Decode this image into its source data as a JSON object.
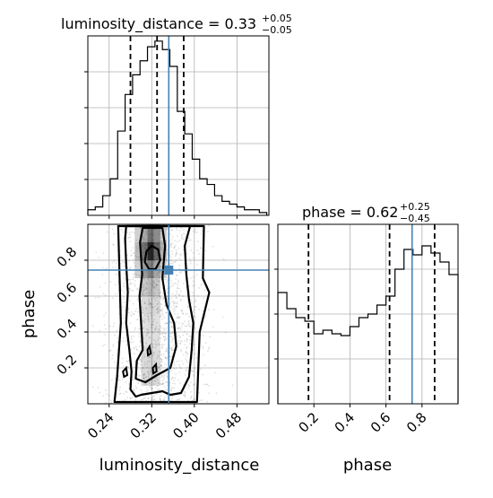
{
  "chart_data": {
    "type": "corner",
    "parameters": [
      "luminosity_distance",
      "phase"
    ],
    "truth": {
      "luminosity_distance": 0.352,
      "phase": 0.745
    },
    "titles": [
      {
        "parameter": "luminosity_distance",
        "prefix": "luminosity_distance = 0.33",
        "plus": "+0.05",
        "minus": "−0.05"
      },
      {
        "parameter": "phase",
        "prefix": "phase = 0.62",
        "plus": "+0.25",
        "minus": "−0.45"
      }
    ],
    "xlabels": [
      "luminosity_distance",
      "phase"
    ],
    "ylabel": "phase",
    "hist_luminosity_distance": {
      "bins": [
        0.2,
        0.214,
        0.228,
        0.242,
        0.256,
        0.27,
        0.284,
        0.298,
        0.312,
        0.326,
        0.34,
        0.354,
        0.368,
        0.382,
        0.396,
        0.41,
        0.424,
        0.438,
        0.452,
        0.466,
        0.48,
        0.494,
        0.508,
        0.522,
        0.536
      ],
      "counts": [
        2,
        3,
        7,
        13,
        30,
        43,
        50,
        55,
        60,
        62,
        59,
        53,
        37,
        29,
        20,
        13,
        11,
        7,
        5,
        4,
        3,
        2,
        2,
        1
      ],
      "quantiles": [
        0.28,
        0.33,
        0.38
      ],
      "xlim": [
        0.2,
        0.54
      ],
      "xticks": [
        "0.24",
        "0.32",
        "0.40",
        "0.48"
      ]
    },
    "hist_phase": {
      "bins": [
        0.0,
        0.05,
        0.1,
        0.15,
        0.2,
        0.25,
        0.3,
        0.35,
        0.4,
        0.45,
        0.5,
        0.55,
        0.6,
        0.65,
        0.7,
        0.75,
        0.8,
        0.85,
        0.9,
        0.95,
        1.0
      ],
      "counts": [
        62,
        53,
        48,
        46,
        39,
        41,
        39,
        38,
        43,
        48,
        50,
        55,
        60,
        75,
        86,
        83,
        88,
        84,
        79,
        72
      ],
      "quantiles": [
        0.17,
        0.62,
        0.87
      ],
      "xlim": [
        0.0,
        1.0
      ],
      "ylim": [
        0,
        100
      ],
      "xticks": [
        "0.2",
        "0.4",
        "0.6",
        "0.8"
      ]
    },
    "scatter": {
      "xlim": [
        0.2,
        0.54
      ],
      "ylim": [
        0.0,
        1.0
      ],
      "yticks": [
        "0.2",
        "0.4",
        "0.6",
        "0.8"
      ],
      "contours": [
        [
          [
            0.307,
            0.79
          ],
          [
            0.31,
            0.85
          ],
          [
            0.32,
            0.88
          ],
          [
            0.332,
            0.86
          ],
          [
            0.336,
            0.8
          ],
          [
            0.327,
            0.75
          ],
          [
            0.315,
            0.75
          ]
        ],
        [
          [
            0.302,
            0.72
          ],
          [
            0.298,
            0.9
          ],
          [
            0.303,
            0.98
          ],
          [
            0.34,
            0.98
          ],
          [
            0.345,
            0.88
          ],
          [
            0.34,
            0.7
          ],
          [
            0.348,
            0.55
          ],
          [
            0.362,
            0.45
          ],
          [
            0.366,
            0.32
          ],
          [
            0.355,
            0.2
          ],
          [
            0.33,
            0.16
          ],
          [
            0.308,
            0.12
          ],
          [
            0.29,
            0.14
          ],
          [
            0.292,
            0.24
          ],
          [
            0.303,
            0.3
          ],
          [
            0.3,
            0.45
          ],
          [
            0.297,
            0.6
          ]
        ],
        [
          [
            0.278,
            0.3
          ],
          [
            0.272,
            0.45
          ],
          [
            0.275,
            0.62
          ],
          [
            0.272,
            0.78
          ],
          [
            0.27,
            0.92
          ],
          [
            0.272,
            0.99
          ],
          [
            0.392,
            0.99
          ],
          [
            0.382,
            0.88
          ],
          [
            0.385,
            0.72
          ],
          [
            0.39,
            0.58
          ],
          [
            0.398,
            0.45
          ],
          [
            0.395,
            0.3
          ],
          [
            0.39,
            0.15
          ],
          [
            0.375,
            0.06
          ],
          [
            0.355,
            0.05
          ],
          [
            0.34,
            0.07
          ],
          [
            0.3,
            0.05
          ],
          [
            0.29,
            0.04
          ],
          [
            0.28,
            0.08
          ],
          [
            0.282,
            0.18
          ]
        ],
        [
          [
            0.255,
            0.15
          ],
          [
            0.262,
            0.45
          ],
          [
            0.257,
            0.99
          ],
          [
            0.418,
            0.99
          ],
          [
            0.416,
            0.7
          ],
          [
            0.428,
            0.62
          ],
          [
            0.41,
            0.4
          ],
          [
            0.405,
            0.01
          ],
          [
            0.25,
            0.01
          ]
        ]
      ],
      "small_loops": [
        [
          [
            0.266,
            0.18
          ],
          [
            0.272,
            0.2
          ],
          [
            0.274,
            0.16
          ],
          [
            0.268,
            0.15
          ]
        ],
        [
          [
            0.312,
            0.3
          ],
          [
            0.316,
            0.32
          ],
          [
            0.318,
            0.28
          ],
          [
            0.313,
            0.27
          ]
        ],
        [
          [
            0.322,
            0.2
          ],
          [
            0.328,
            0.22
          ],
          [
            0.329,
            0.18
          ],
          [
            0.323,
            0.17
          ]
        ]
      ]
    }
  }
}
